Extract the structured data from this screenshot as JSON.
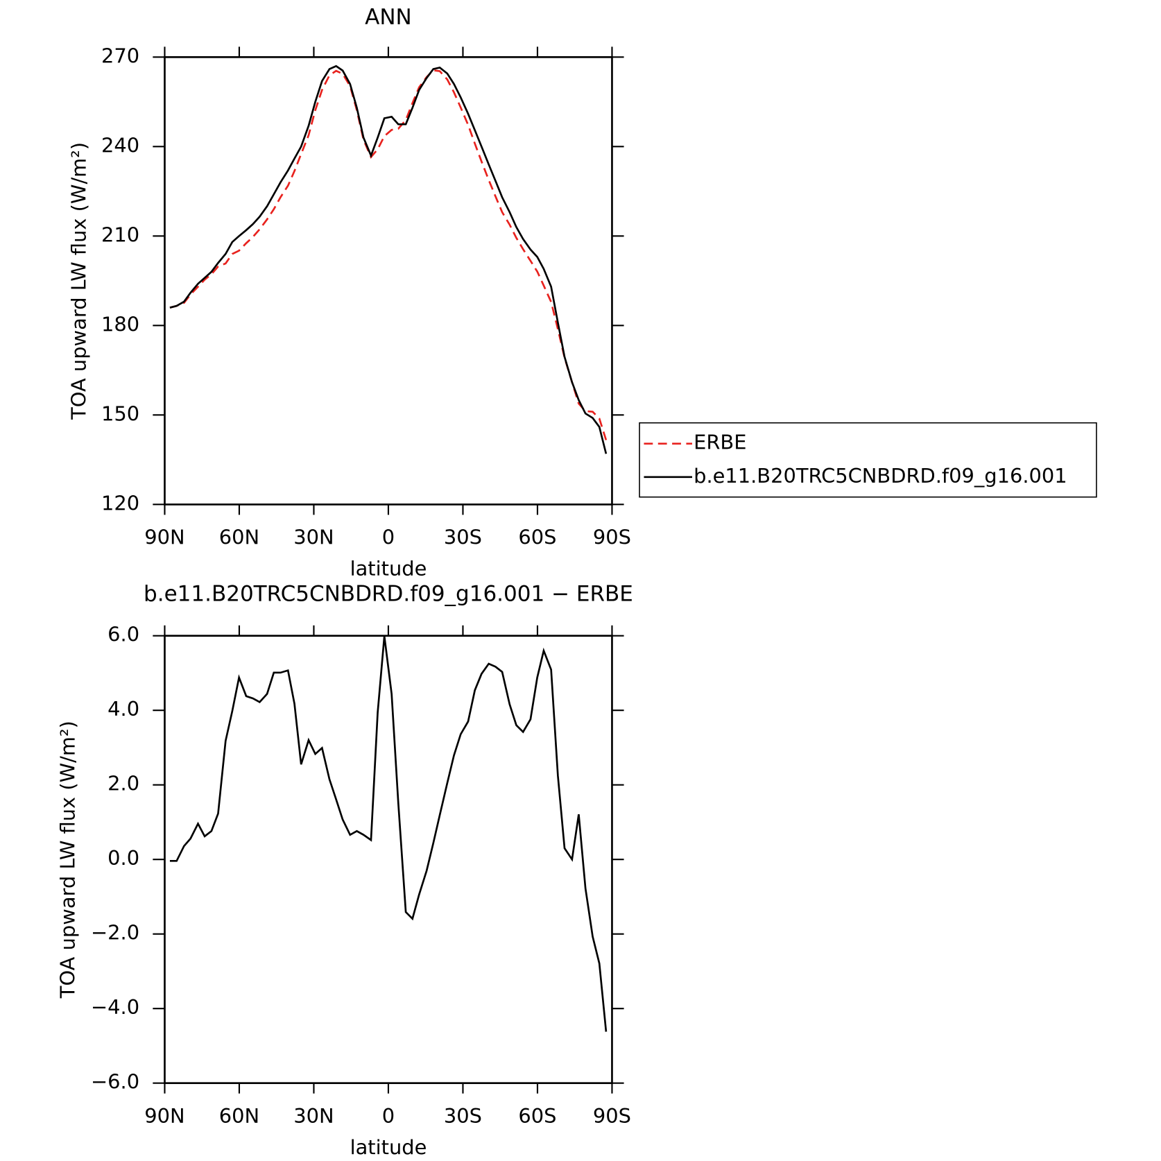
{
  "chart_data": [
    {
      "type": "line",
      "title": "ANN",
      "x_label": "latitude",
      "y_label": "TOA upward LW flux (W/m²)",
      "x": [
        87.9,
        85.2,
        82.2,
        79.6,
        76.6,
        73.9,
        71.2,
        68.5,
        65.5,
        62.8,
        60.1,
        57.2,
        54.5,
        51.8,
        48.8,
        46.1,
        43.4,
        40.4,
        37.8,
        35.1,
        32.1,
        29.4,
        26.7,
        23.7,
        21.0,
        18.4,
        15.4,
        12.7,
        10.0,
        7.0,
        4.3,
        1.6,
        -1.3,
        -4.0,
        -7.0,
        -9.7,
        -12.4,
        -15.4,
        -18.1,
        -20.7,
        -23.7,
        -26.4,
        -29.1,
        -32.1,
        -34.8,
        -37.5,
        -40.4,
        -43.1,
        -45.8,
        -48.8,
        -51.5,
        -54.2,
        -57.2,
        -59.9,
        -62.5,
        -65.5,
        -68.2,
        -70.9,
        -73.9,
        -76.6,
        -79.3,
        -82.2,
        -84.9,
        -87.6
      ],
      "series": [
        {
          "name": "ERBE",
          "color": "#e8221e",
          "dashed": true,
          "values": [
            186.0,
            186.6,
            187.6,
            190.4,
            193.0,
            195.4,
            197.2,
            199.8,
            200.8,
            204.0,
            205.1,
            207.6,
            209.7,
            212.3,
            215.6,
            219.0,
            223.0,
            226.9,
            231.8,
            237.5,
            243.8,
            252.2,
            259.0,
            263.9,
            265.4,
            264.4,
            260.3,
            252.2,
            242.3,
            236.5,
            239.1,
            243.5,
            245.6,
            246.0,
            248.9,
            254.6,
            259.9,
            263.3,
            265.6,
            265.3,
            262.5,
            258.2,
            253.1,
            247.3,
            241.0,
            235.0,
            228.8,
            223.3,
            218.0,
            213.8,
            209.4,
            205.6,
            201.7,
            198.1,
            193.4,
            187.9,
            178.8,
            169.2,
            161.0,
            153.8,
            151.3,
            151.1,
            148.8,
            141.6
          ]
        },
        {
          "name": "b.e11.B20TRC5CNBDRD.f09_g16.001",
          "color": "#000000",
          "dashed": false,
          "values": [
            186.0,
            186.6,
            188,
            191,
            194,
            196,
            198,
            201,
            204,
            208,
            210,
            212,
            214,
            216.5,
            220,
            224,
            228,
            232,
            236,
            240,
            247,
            255,
            262,
            266,
            267,
            265.5,
            261,
            253,
            243,
            237,
            243,
            249.5,
            250,
            247.5,
            247.5,
            253,
            259,
            263,
            266,
            266.5,
            264.5,
            261,
            256.5,
            251,
            245.5,
            240,
            234,
            228.5,
            223,
            218,
            213,
            209,
            205.5,
            203,
            199,
            193,
            181,
            169.5,
            161,
            155,
            150.5,
            149,
            146,
            137
          ]
        }
      ],
      "xlim": [
        90,
        -90
      ],
      "xticks": [
        {
          "value": 90,
          "label": "90N"
        },
        {
          "value": 60,
          "label": "60N"
        },
        {
          "value": 30,
          "label": "30N"
        },
        0,
        {
          "value": -30,
          "label": "30S"
        },
        {
          "value": -60,
          "label": "60S"
        },
        {
          "value": -90,
          "label": "90S"
        }
      ],
      "ylim": [
        120,
        270
      ],
      "yticks": [
        120,
        150,
        180,
        210,
        240,
        270
      ],
      "legend": "right"
    },
    {
      "type": "line",
      "title": "b.e11.B20TRC5CNBDRD.f09_g16.001 − ERBE",
      "x_label": "latitude",
      "y_label": "TOA upward LW flux (W/m²)",
      "x": [
        87.9,
        85.2,
        82.2,
        79.6,
        76.6,
        73.9,
        71.2,
        68.5,
        65.5,
        62.8,
        60.1,
        57.2,
        54.5,
        51.8,
        48.8,
        46.1,
        43.4,
        40.4,
        37.8,
        35.1,
        32.1,
        29.4,
        26.7,
        23.7,
        21.0,
        18.4,
        15.4,
        12.7,
        10.0,
        7.0,
        4.3,
        1.6,
        -1.3,
        -4.0,
        -7.0,
        -9.7,
        -12.4,
        -15.4,
        -18.1,
        -20.7,
        -23.7,
        -26.4,
        -29.1,
        -32.1,
        -34.8,
        -37.5,
        -40.4,
        -43.1,
        -45.8,
        -48.8,
        -51.5,
        -54.2,
        -57.2,
        -59.9,
        -62.5,
        -65.5,
        -68.2,
        -70.9,
        -73.9,
        -76.6,
        -79.3,
        -82.2,
        -84.9,
        -87.6
      ],
      "values": [
        -0.04,
        -0.04,
        0.36,
        0.56,
        0.96,
        0.62,
        0.76,
        1.23,
        3.18,
        3.98,
        4.88,
        4.38,
        4.32,
        4.22,
        4.44,
        5.01,
        5.01,
        5.07,
        4.18,
        2.55,
        3.2,
        2.83,
        2.99,
        2.15,
        1.61,
        1.07,
        0.66,
        0.76,
        0.66,
        0.52,
        3.94,
        5.99,
        4.44,
        1.51,
        -1.41,
        -1.59,
        -0.94,
        -0.3,
        0.44,
        1.19,
        2.05,
        2.79,
        3.36,
        3.7,
        4.54,
        4.98,
        5.25,
        5.17,
        5.03,
        4.16,
        3.6,
        3.42,
        3.76,
        4.88,
        5.6,
        5.09,
        2.25,
        0.3,
        0.0,
        1.21,
        -0.78,
        -2.07,
        -2.79,
        -4.62
      ],
      "color": "#000000",
      "xlim": [
        90,
        -90
      ],
      "xticks": [
        {
          "value": 90,
          "label": "90N"
        },
        {
          "value": 60,
          "label": "60N"
        },
        {
          "value": 30,
          "label": "30N"
        },
        0,
        {
          "value": -30,
          "label": "30S"
        },
        {
          "value": -60,
          "label": "60S"
        },
        {
          "value": -90,
          "label": "90S"
        }
      ],
      "ylim": [
        -6,
        6
      ],
      "yticks": [
        {
          "value": -6,
          "label": "−6.0"
        },
        {
          "value": -4,
          "label": "−4.0"
        },
        {
          "value": -2,
          "label": "−2.0"
        },
        {
          "value": 0,
          "label": "0.0"
        },
        {
          "value": 2,
          "label": "2.0"
        },
        {
          "value": 4,
          "label": "4.0"
        },
        {
          "value": 6,
          "label": "6.0"
        }
      ]
    }
  ]
}
